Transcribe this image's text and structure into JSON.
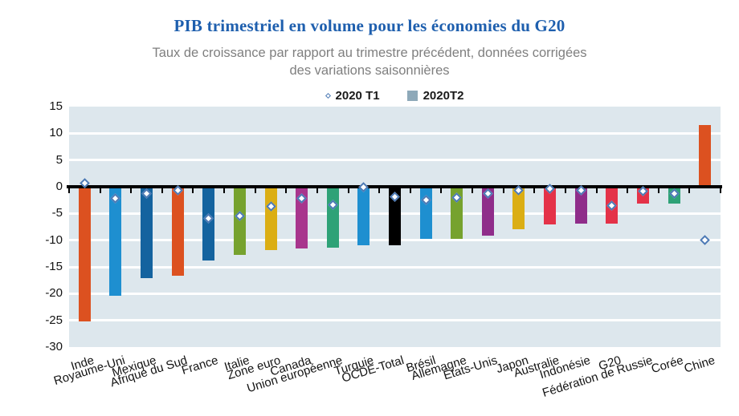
{
  "title": "PIB trimestriel en volume pour les économies du G20",
  "subtitle": {
    "line1": "Taux de croissance par rapport au trimestre précédent, données corrigées",
    "line2": "des variations saisonnières"
  },
  "legend": {
    "t1_label": "2020 T1",
    "t2_label": "2020T2",
    "t1_marker": "diamond-outline",
    "t2_marker": "square",
    "square_color": "#8ea9b9",
    "diamond_border_color": "#4d7ab5"
  },
  "chart_data": {
    "type": "bar",
    "title": "PIB trimestriel en volume pour les économies du G20",
    "subtitle": "Taux de croissance par rapport au trimestre précédent, données corrigées des variations saisonnières",
    "unit": "%",
    "categories": [
      "Inde",
      "Royaume-Uni",
      "Mexique",
      "Afrique du Sud",
      "France",
      "Italie",
      "Zone euro",
      "Canada",
      "Union européenne",
      "Turquie",
      "OCDE-Total",
      "Brésil",
      "Allemagne",
      "États-Unis",
      "Japon",
      "Australie",
      "Indonésie",
      "G20",
      "Fédération de Russie",
      "Corée",
      "Chine"
    ],
    "series": [
      {
        "name": "2020 T1",
        "style": "diamond-marker",
        "values": [
          0.7,
          -2.2,
          -1.2,
          -0.6,
          -5.9,
          -5.4,
          -3.7,
          -2.1,
          -3.3,
          -0.1,
          -1.8,
          -2.5,
          -2.0,
          -1.3,
          -0.6,
          -0.3,
          -0.7,
          -3.5,
          -0.8,
          -1.3,
          -10.0
        ]
      },
      {
        "name": "2020 T2",
        "style": "bar",
        "values": [
          -25.2,
          -20.4,
          -17.1,
          -16.6,
          -13.8,
          -12.8,
          -11.8,
          -11.5,
          -11.4,
          -11.0,
          -10.9,
          -9.7,
          -9.7,
          -9.1,
          -7.9,
          -7.0,
          -6.9,
          -6.9,
          -3.2,
          -3.2,
          11.5
        ]
      }
    ],
    "bar_colors": [
      "#dc5120",
      "#1e8fd0",
      "#14639f",
      "#dc5120",
      "#14639f",
      "#76a22e",
      "#dbae14",
      "#a8358d",
      "#2ea277",
      "#1e8fd0",
      "#000000",
      "#1e8fd0",
      "#76a22e",
      "#8f2d8a",
      "#dbae14",
      "#e43248",
      "#8f2d8a",
      "#e43248",
      "#e43248",
      "#2ea277",
      "#dc5120"
    ],
    "ylim": [
      -30,
      15
    ],
    "yticks": [
      15,
      10,
      5,
      0,
      -5,
      -10,
      -15,
      -20,
      -25,
      -30
    ],
    "gridline_values": [
      10,
      5,
      -5,
      -10,
      -15,
      -20,
      -25
    ],
    "grid": true,
    "legend_position": "top",
    "plot_bg_color": "#dde7ed",
    "marker_fill": "#ffffff",
    "marker_border": "#4d7ab5",
    "axis_color": "#000000",
    "title_color": "#1e5fae",
    "subtitle_color": "#7f7f7f"
  }
}
